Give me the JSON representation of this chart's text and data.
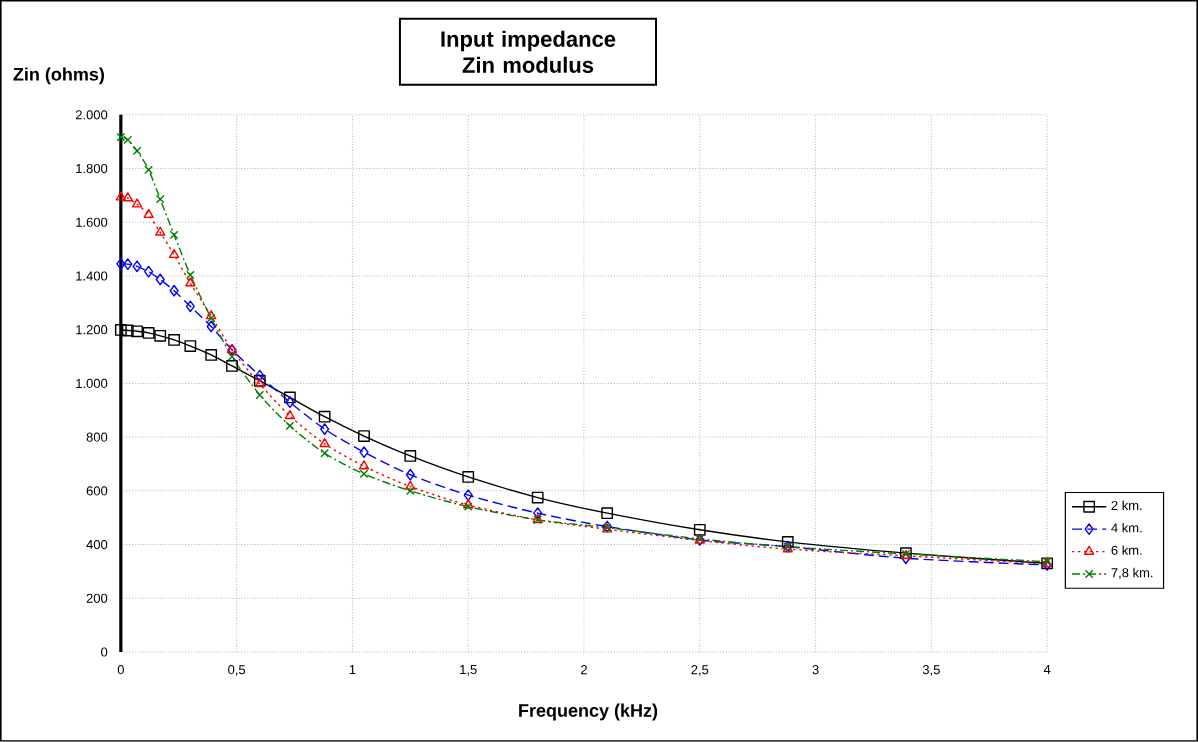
{
  "chart_data": {
    "type": "line",
    "title": "Input impedance  Zin modulus",
    "xlabel": "Frequency  (kHz)",
    "ylabel": "Zin (ohms)",
    "x": [
      0,
      0.03,
      0.07,
      0.12,
      0.17,
      0.23,
      0.3,
      0.39,
      0.48,
      0.6,
      0.73,
      0.88,
      1.05,
      1.25,
      1.5,
      1.8,
      2.1,
      2.5,
      2.88,
      3.39,
      4
    ],
    "series": [
      {
        "name": "2 km.",
        "color": "#000000",
        "marker": "square",
        "line_style": "solid",
        "values": [
          1199,
          1197,
          1194,
          1188,
          1177,
          1162,
          1139,
          1106,
          1065,
          1010,
          948,
          876,
          804,
          730,
          652,
          575,
          517,
          455,
          410,
          368,
          330
        ]
      },
      {
        "name": "4 km.",
        "color": "#0000ff",
        "marker": "diamond",
        "line_style": "dashed",
        "values": [
          1445,
          1444,
          1436,
          1416,
          1387,
          1345,
          1287,
          1212,
          1125,
          1029,
          930,
          830,
          744,
          660,
          584,
          517,
          467,
          417,
          392,
          349,
          324
        ]
      },
      {
        "name": "6 km.",
        "color": "#ff0000",
        "marker": "triangle",
        "line_style": "dotted",
        "values": [
          1693,
          1690,
          1667,
          1628,
          1562,
          1479,
          1373,
          1251,
          1125,
          998,
          879,
          775,
          692,
          616,
          547,
          492,
          457,
          415,
          383,
          358,
          328
        ]
      },
      {
        "name": "7,8 km.",
        "color": "#008000",
        "marker": "cross",
        "line_style": "dashdot",
        "values": [
          1917,
          1907,
          1866,
          1795,
          1686,
          1553,
          1404,
          1243,
          1100,
          957,
          842,
          740,
          663,
          600,
          541,
          492,
          463,
          421,
          392,
          365,
          336
        ]
      }
    ],
    "xlim": [
      0,
      4
    ],
    "ylim": [
      0,
      2000
    ],
    "xticks": [
      0,
      {
        "value": 0.5,
        "label": "0,5"
      },
      1,
      {
        "value": 1.5,
        "label": "1,5"
      },
      2,
      {
        "value": 2.5,
        "label": "2,5"
      },
      3,
      {
        "value": 3.5,
        "label": "3,5"
      },
      4
    ],
    "yticks": [
      0,
      200,
      400,
      600,
      800,
      {
        "value": 1000,
        "label": "1.000"
      },
      {
        "value": 1200,
        "label": "1.200"
      },
      {
        "value": 1400,
        "label": "1.400"
      },
      {
        "value": 1600,
        "label": "1.600"
      },
      {
        "value": 1800,
        "label": "1.800"
      },
      {
        "value": 2000,
        "label": "2.000"
      }
    ],
    "grid": true,
    "legend": "right"
  }
}
